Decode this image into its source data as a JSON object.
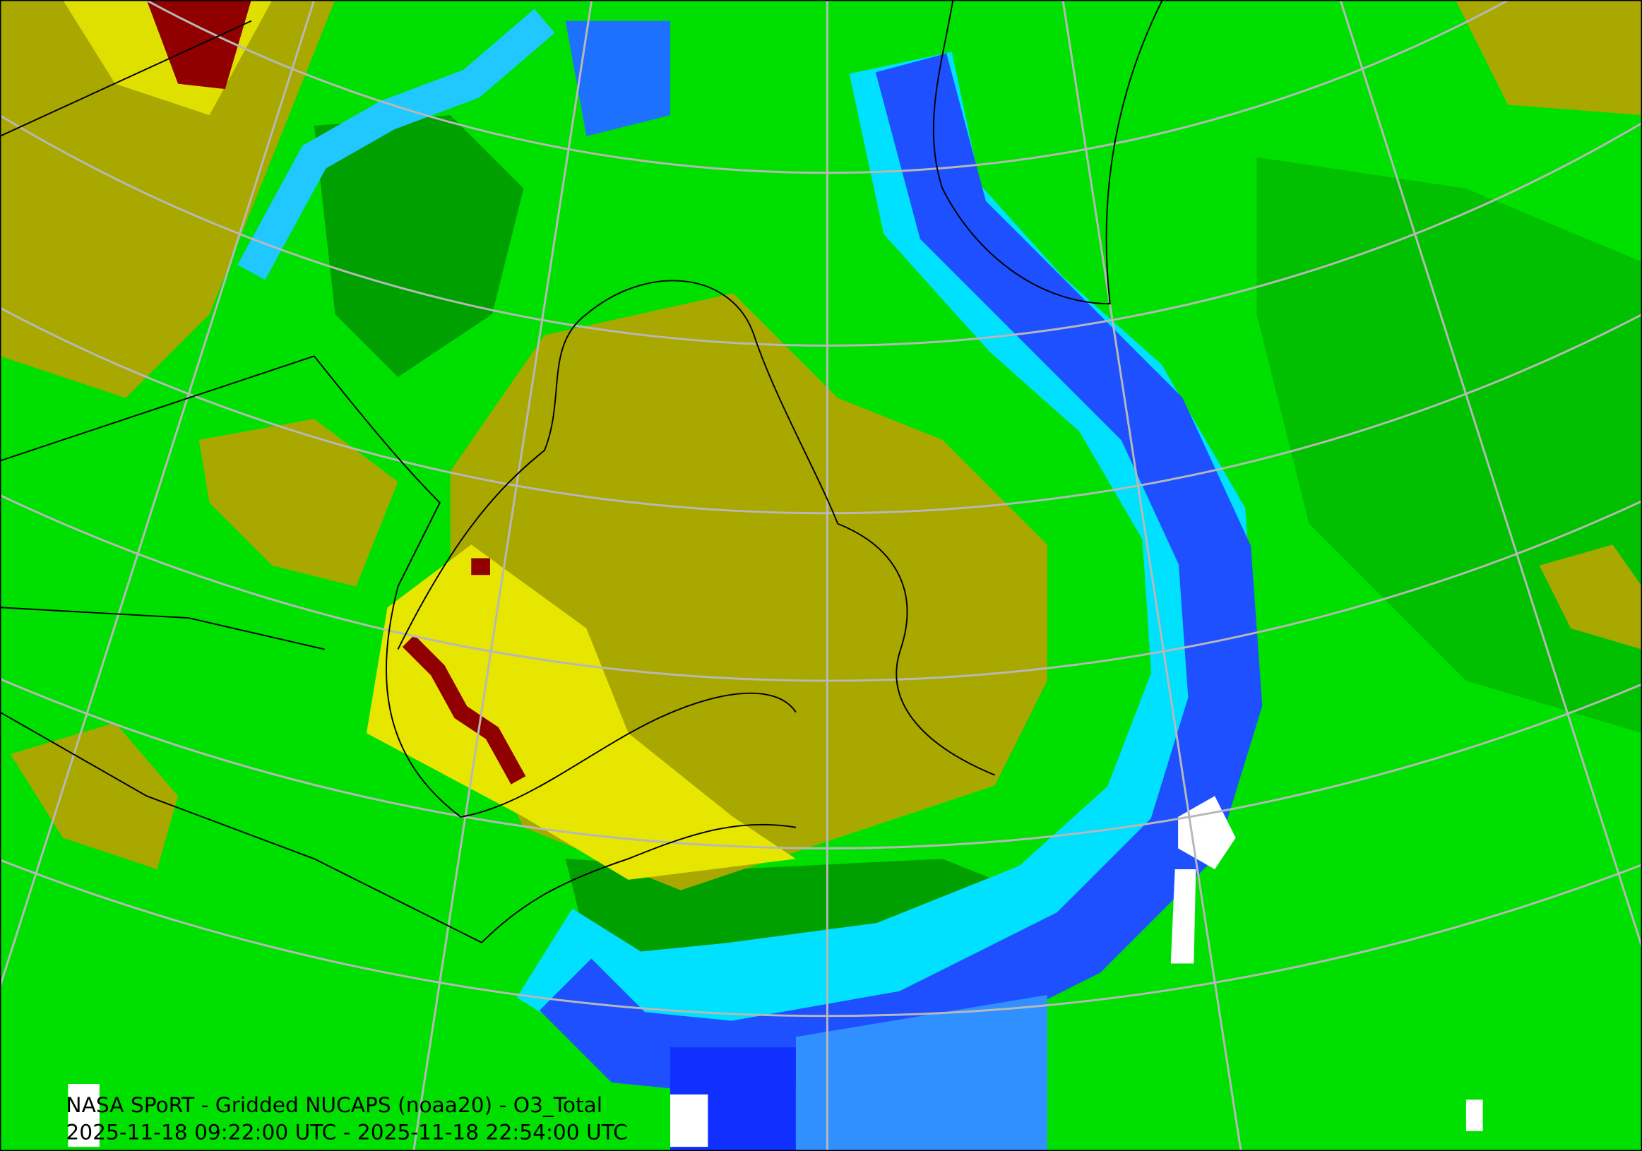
{
  "caption": {
    "title": "NASA SPoRT - Gridded NUCAPS (noaa20) - O3_Total",
    "time_range": "2025-11-18 09:22:00 UTC - 2025-11-18 22:54:00 UTC"
  }
}
